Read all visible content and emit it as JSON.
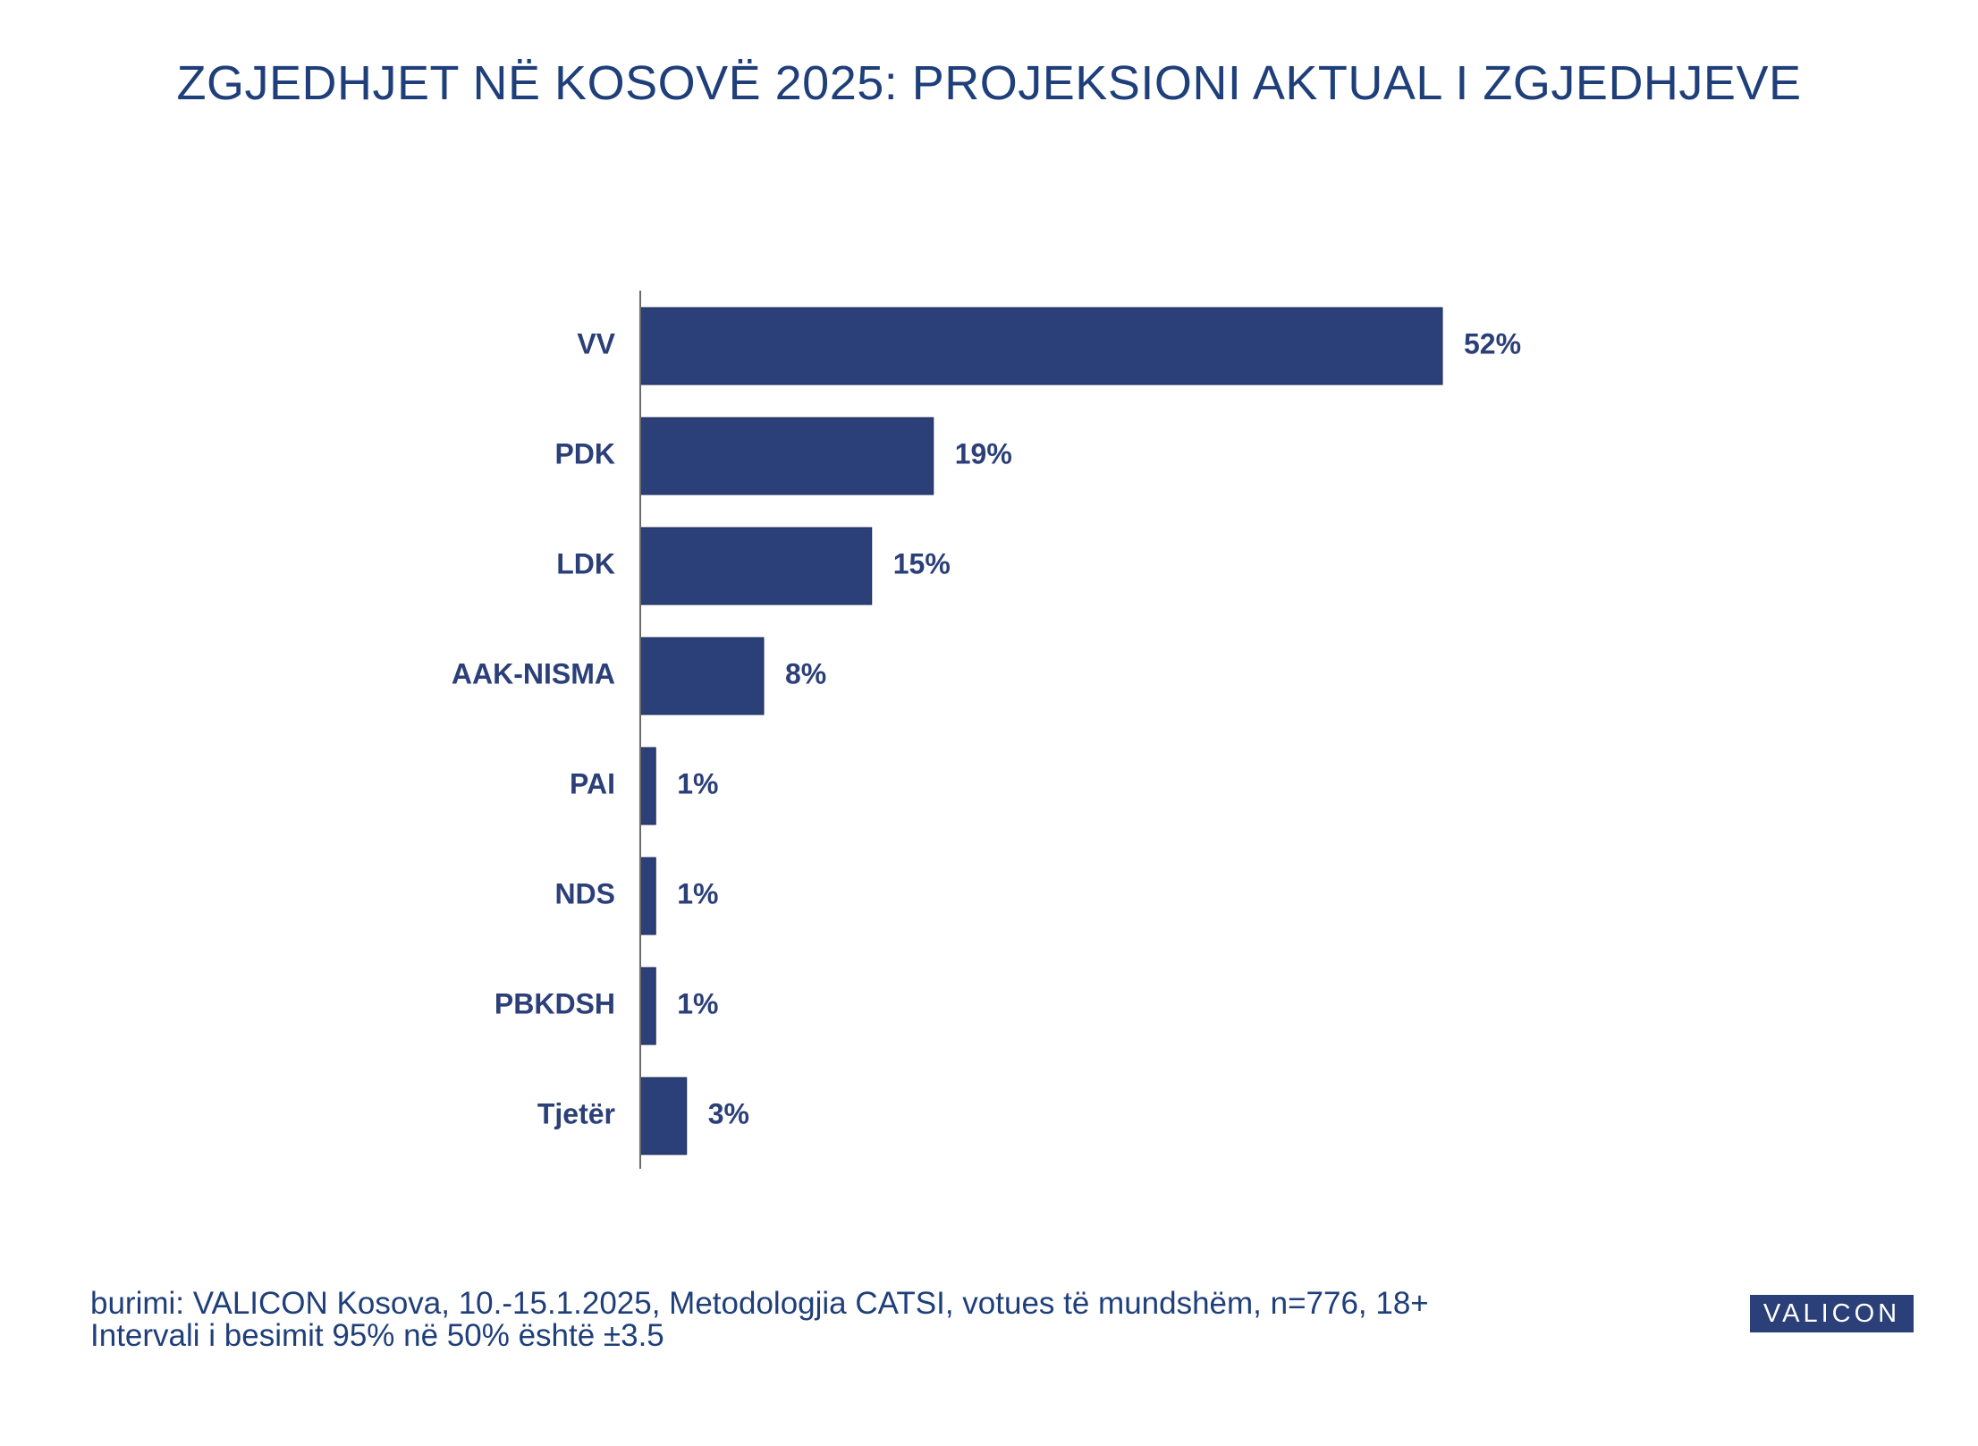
{
  "title": "ZGJEDHJET NË KOSOVË 2025: PROJEKSIONI AKTUAL I ZGJEDHJEVE",
  "chart_data": {
    "type": "bar",
    "orientation": "horizontal",
    "title": "ZGJEDHJET NË KOSOVË 2025: PROJEKSIONI AKTUAL I ZGJEDHJEVE",
    "categories": [
      "VV",
      "PDK",
      "LDK",
      "AAK-NISMA",
      "PAI",
      "NDS",
      "PBKDSH",
      "Tjetër"
    ],
    "values": [
      52,
      19,
      15,
      8,
      1,
      1,
      1,
      3
    ],
    "value_labels": [
      "52%",
      "19%",
      "15%",
      "8%",
      "1%",
      "1%",
      "1%",
      "3%"
    ],
    "unit": "%",
    "xlim": [
      0,
      60
    ],
    "bar_color": "#2b3f78",
    "label_color": "#2b3f78",
    "grid": false,
    "legend": "none"
  },
  "footer": {
    "line1": "burimi: VALICON Kosova, 10.-15.1.2025, Metodologjia CATSI, votues të mundshëm, n=776, 18+",
    "line2": "Intervali i besimit 95% në 50% është ±3.5"
  },
  "logo": {
    "text": "VALICON",
    "background": "#2b3f78"
  }
}
